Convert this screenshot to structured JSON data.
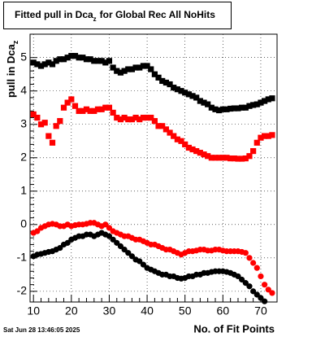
{
  "chart_data": {
    "type": "scatter",
    "title": {
      "main": "Fitted pull in Dca",
      "sub": "z",
      "rest": "for Global Rec All NoHits"
    },
    "ylabel": {
      "main": "pull in Dca",
      "sub": "z"
    },
    "xlabel": "No. of Fit Points",
    "timestamp": "Sat Jun 28 13:46:05 2025",
    "xlim": [
      9.1,
      74.3
    ],
    "xticks": [
      10,
      20,
      30,
      40,
      50,
      60,
      70
    ],
    "ylim": [
      -2.32,
      5.7
    ],
    "yticks": [
      -2,
      -1,
      0,
      1,
      2,
      3,
      4,
      5
    ],
    "grid": true,
    "series": [
      {
        "color": "#000000",
        "marker": "square",
        "x": [
          10,
          11,
          12,
          13,
          14,
          15,
          16,
          17,
          18,
          19,
          20,
          21,
          22,
          23,
          24,
          25,
          26,
          27,
          28,
          29,
          30,
          31,
          32,
          33,
          34,
          35,
          36,
          37,
          38,
          39,
          40,
          41,
          42,
          43,
          44,
          45,
          46,
          47,
          48,
          49,
          50,
          51,
          52,
          53,
          54,
          55,
          56,
          57,
          58,
          59,
          60,
          61,
          62,
          63,
          64,
          65,
          66,
          67,
          68,
          69,
          70,
          71,
          72,
          73
        ],
        "values": [
          4.85,
          4.8,
          4.75,
          4.8,
          4.85,
          4.8,
          4.9,
          4.95,
          4.95,
          5.0,
          5.05,
          5.05,
          5.0,
          5.0,
          4.95,
          4.95,
          4.9,
          4.9,
          4.9,
          4.85,
          4.9,
          4.7,
          4.6,
          4.55,
          4.6,
          4.65,
          4.65,
          4.7,
          4.7,
          4.75,
          4.75,
          4.65,
          4.5,
          4.4,
          4.3,
          4.25,
          4.2,
          4.1,
          4.05,
          4.0,
          3.95,
          3.9,
          3.85,
          3.8,
          3.7,
          3.65,
          3.6,
          3.5,
          3.45,
          3.42,
          3.45,
          3.45,
          3.47,
          3.48,
          3.48,
          3.5,
          3.5,
          3.55,
          3.58,
          3.6,
          3.65,
          3.7,
          3.75,
          3.78
        ]
      },
      {
        "color": "#ff0000",
        "marker": "square",
        "x": [
          10,
          11,
          12,
          13,
          14,
          15,
          16,
          17,
          18,
          19,
          20,
          21,
          22,
          23,
          24,
          25,
          26,
          27,
          28,
          29,
          30,
          31,
          32,
          33,
          34,
          35,
          36,
          37,
          38,
          39,
          40,
          41,
          42,
          43,
          44,
          45,
          46,
          47,
          48,
          49,
          50,
          51,
          52,
          53,
          54,
          55,
          56,
          57,
          58,
          59,
          60,
          61,
          62,
          63,
          64,
          65,
          66,
          67,
          68,
          69,
          70,
          71,
          72,
          73
        ],
        "values": [
          3.3,
          3.2,
          3.0,
          3.05,
          2.65,
          2.45,
          2.95,
          3.1,
          3.5,
          3.65,
          3.75,
          3.55,
          3.4,
          3.4,
          3.45,
          3.4,
          3.4,
          3.45,
          3.45,
          3.5,
          3.5,
          3.35,
          3.2,
          3.15,
          3.2,
          3.15,
          3.15,
          3.2,
          3.15,
          3.2,
          3.2,
          3.2,
          3.1,
          2.95,
          2.95,
          2.85,
          2.75,
          2.65,
          2.55,
          2.5,
          2.4,
          2.3,
          2.25,
          2.2,
          2.15,
          2.1,
          2.05,
          2.0,
          2.0,
          2.0,
          2.0,
          2.0,
          1.98,
          1.98,
          1.97,
          1.97,
          1.98,
          2.05,
          2.2,
          2.45,
          2.6,
          2.65,
          2.65,
          2.68
        ]
      },
      {
        "color": "#ff0000",
        "marker": "circle",
        "x": [
          10,
          11,
          12,
          13,
          14,
          15,
          16,
          17,
          18,
          19,
          20,
          21,
          22,
          23,
          24,
          25,
          26,
          27,
          28,
          29,
          30,
          31,
          32,
          33,
          34,
          35,
          36,
          37,
          38,
          39,
          40,
          41,
          42,
          43,
          44,
          45,
          46,
          47,
          48,
          49,
          50,
          51,
          52,
          53,
          54,
          55,
          56,
          57,
          58,
          59,
          60,
          61,
          62,
          63,
          64,
          65,
          66,
          67,
          68,
          69,
          70,
          71,
          72,
          73
        ],
        "values": [
          -0.25,
          -0.2,
          -0.1,
          -0.05,
          0.0,
          0.02,
          0.0,
          -0.05,
          -0.05,
          0.0,
          -0.05,
          -0.02,
          0.0,
          0.0,
          0.02,
          0.05,
          0.05,
          0.0,
          -0.05,
          0.0,
          -0.1,
          -0.2,
          -0.25,
          -0.3,
          -0.35,
          -0.35,
          -0.4,
          -0.45,
          -0.45,
          -0.5,
          -0.55,
          -0.6,
          -0.6,
          -0.65,
          -0.7,
          -0.75,
          -0.75,
          -0.8,
          -0.85,
          -0.9,
          -0.85,
          -0.8,
          -0.8,
          -0.78,
          -0.75,
          -0.75,
          -0.78,
          -0.78,
          -0.75,
          -0.75,
          -0.78,
          -0.8,
          -0.8,
          -0.8,
          -0.8,
          -0.82,
          -0.85,
          -1.0,
          -1.15,
          -1.3,
          -1.55,
          -1.8,
          -1.95,
          -2.05
        ]
      },
      {
        "color": "#000000",
        "marker": "circle",
        "x": [
          10,
          11,
          12,
          13,
          14,
          15,
          16,
          17,
          18,
          19,
          20,
          21,
          22,
          23,
          24,
          25,
          26,
          27,
          28,
          29,
          30,
          31,
          32,
          33,
          34,
          35,
          36,
          37,
          38,
          39,
          40,
          41,
          42,
          43,
          44,
          45,
          46,
          47,
          48,
          49,
          50,
          51,
          52,
          53,
          54,
          55,
          56,
          57,
          58,
          59,
          60,
          61,
          62,
          63,
          64,
          65,
          66,
          67,
          68,
          69,
          70,
          71
        ],
        "values": [
          -0.95,
          -0.9,
          -0.88,
          -0.85,
          -0.82,
          -0.8,
          -0.75,
          -0.7,
          -0.6,
          -0.55,
          -0.45,
          -0.4,
          -0.35,
          -0.35,
          -0.3,
          -0.3,
          -0.35,
          -0.3,
          -0.25,
          -0.3,
          -0.35,
          -0.45,
          -0.55,
          -0.65,
          -0.75,
          -0.85,
          -0.95,
          -1.05,
          -1.1,
          -1.2,
          -1.3,
          -1.35,
          -1.4,
          -1.45,
          -1.5,
          -1.5,
          -1.55,
          -1.55,
          -1.6,
          -1.62,
          -1.6,
          -1.55,
          -1.55,
          -1.5,
          -1.5,
          -1.45,
          -1.45,
          -1.42,
          -1.4,
          -1.4,
          -1.4,
          -1.42,
          -1.45,
          -1.5,
          -1.55,
          -1.65,
          -1.75,
          -1.85,
          -2.0,
          -2.1,
          -2.2,
          -2.3
        ]
      }
    ]
  }
}
